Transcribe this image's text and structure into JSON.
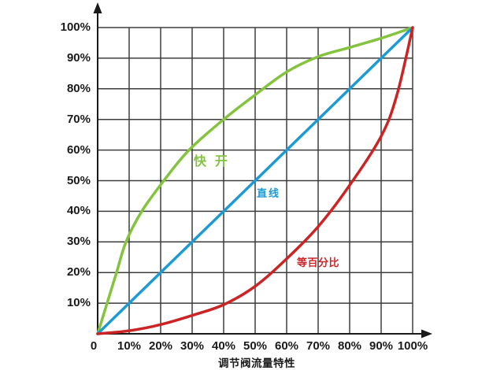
{
  "chart_data": {
    "type": "line",
    "title": "调节阀流量特性",
    "xlabel": "",
    "ylabel": "",
    "xlim": [
      0,
      1
    ],
    "ylim": [
      0,
      1
    ],
    "grid": true,
    "legend_position": "inline-labels",
    "background_color": "#ffffff",
    "grid_color": "#3d3d3d",
    "axis_color": "#1a1a1a",
    "x_tick_labels": [
      "0",
      "10%",
      "20%",
      "30%",
      "40%",
      "50%",
      "60%",
      "70%",
      "80%",
      "90%",
      "100%"
    ],
    "y_tick_labels": [
      "10%",
      "20%",
      "30%",
      "40%",
      "50%",
      "60%",
      "70%",
      "80%",
      "90%",
      "100%"
    ],
    "series": [
      {
        "name": "快开",
        "key": "quick-open",
        "color": "#84c33d",
        "points": [
          [
            0,
            0
          ],
          [
            0.03,
            0.1
          ],
          [
            0.06,
            0.2
          ],
          [
            0.09,
            0.3
          ],
          [
            0.14,
            0.4
          ],
          [
            0.21,
            0.5
          ],
          [
            0.29,
            0.6
          ],
          [
            0.4,
            0.7
          ],
          [
            0.5,
            0.78
          ],
          [
            0.6,
            0.855
          ],
          [
            0.7,
            0.905
          ],
          [
            0.8,
            0.935
          ],
          [
            0.9,
            0.965
          ],
          [
            1,
            1
          ]
        ]
      },
      {
        "name": "直线",
        "key": "linear",
        "color": "#1c9ad6",
        "points": [
          [
            0,
            0
          ],
          [
            0.5,
            0.5
          ],
          [
            1,
            1
          ]
        ]
      },
      {
        "name": "等百分比",
        "key": "equal-percentage",
        "color": "#cc2424",
        "points": [
          [
            0,
            0
          ],
          [
            0.1,
            0.01
          ],
          [
            0.2,
            0.03
          ],
          [
            0.3,
            0.06
          ],
          [
            0.4,
            0.095
          ],
          [
            0.5,
            0.155
          ],
          [
            0.6,
            0.245
          ],
          [
            0.7,
            0.35
          ],
          [
            0.8,
            0.485
          ],
          [
            0.9,
            0.645
          ],
          [
            0.95,
            0.78
          ],
          [
            1,
            1
          ]
        ]
      }
    ],
    "annotations": [
      {
        "text": "快开",
        "color": "#84c33d",
        "x": 0.305,
        "y": 0.581
      },
      {
        "text": "直线",
        "color": "#1c9ad6",
        "x": 0.505,
        "y": 0.478
      },
      {
        "text": "等百分比",
        "color": "#cc2424",
        "x": 0.6325,
        "y": 0.252
      }
    ]
  }
}
